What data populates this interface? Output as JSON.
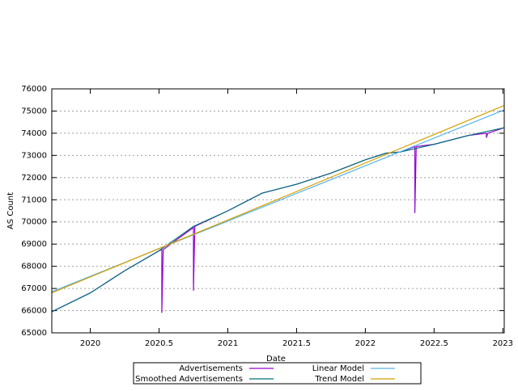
{
  "chart_data": {
    "type": "line",
    "x_label": "Date",
    "y_label": "AS Count",
    "xlim": [
      2019.72,
      2023.01
    ],
    "ylim": [
      65000,
      76000
    ],
    "xticks": [
      2020,
      2020.5,
      2021,
      2021.5,
      2022,
      2022.5,
      2023
    ],
    "yticks": [
      65000,
      66000,
      67000,
      68000,
      69000,
      70000,
      71000,
      72000,
      73000,
      74000,
      75000,
      76000
    ],
    "grid": true,
    "legend": "bottom",
    "series": [
      {
        "name": "Advertisements",
        "color": "#9400d3",
        "x": [
          2019.72,
          2020,
          2020.25,
          2020.5,
          2020.52,
          2020.52,
          2020.53,
          2020.75,
          2020.75,
          2020.76,
          2021,
          2021.25,
          2021.5,
          2021.75,
          2022,
          2022.15,
          2022.25,
          2022.36,
          2022.36,
          2022.37,
          2022.5,
          2022.75,
          2022.88,
          2022.88,
          2022.89,
          2023.01
        ],
        "values": [
          65950,
          66800,
          67800,
          68700,
          68750,
          65900,
          68750,
          69750,
          66900,
          69800,
          70500,
          71300,
          71700,
          72200,
          72800,
          73100,
          73150,
          73400,
          70400,
          73400,
          73500,
          73900,
          74000,
          73800,
          74000,
          74250
        ]
      },
      {
        "name": "Smoothed Advertisements",
        "color": "#00727a",
        "x": [
          2019.72,
          2020,
          2020.25,
          2020.5,
          2020.75,
          2021,
          2021.25,
          2021.5,
          2021.75,
          2022,
          2022.15,
          2022.25,
          2022.5,
          2022.75,
          2023.01
        ],
        "values": [
          65950,
          66800,
          67800,
          68700,
          69800,
          70500,
          71300,
          71700,
          72200,
          72800,
          73100,
          73150,
          73500,
          73900,
          74250
        ]
      },
      {
        "name": "Linear Model",
        "color": "#56b4e9",
        "x": [
          2019.72,
          2023.01
        ],
        "values": [
          66850,
          75050
        ]
      },
      {
        "name": "Trend Model",
        "color": "#d4a000",
        "x": [
          2019.72,
          2023.01
        ],
        "values": [
          66800,
          75250
        ]
      }
    ]
  }
}
